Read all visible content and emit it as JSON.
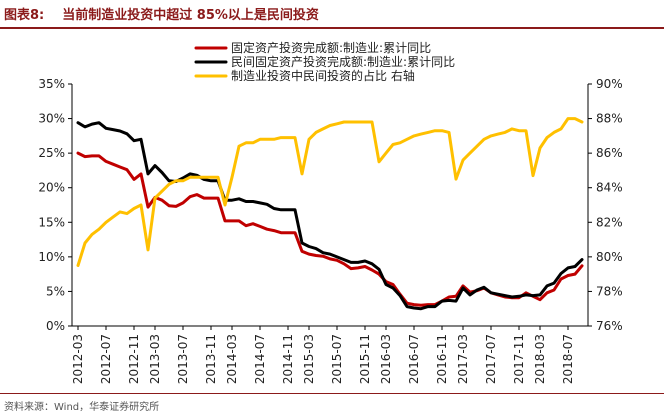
{
  "figure": {
    "label": "图表8:",
    "title": "当前制造业投资中超过 85%以上是民间投资",
    "source": "资料来源：Wind，华泰证券研究所"
  },
  "chart_data": {
    "type": "line",
    "x": [
      "2012-03",
      "2012-04",
      "2012-05",
      "2012-06",
      "2012-07",
      "2012-08",
      "2012-09",
      "2012-10",
      "2012-11",
      "2012-12",
      "2013-02",
      "2013-03",
      "2013-04",
      "2013-05",
      "2013-06",
      "2013-07",
      "2013-08",
      "2013-09",
      "2013-10",
      "2013-11",
      "2013-12",
      "2014-02",
      "2014-03",
      "2014-04",
      "2014-05",
      "2014-06",
      "2014-07",
      "2014-08",
      "2014-09",
      "2014-10",
      "2014-11",
      "2014-12",
      "2015-02",
      "2015-03",
      "2015-04",
      "2015-05",
      "2015-06",
      "2015-07",
      "2015-08",
      "2015-09",
      "2015-10",
      "2015-11",
      "2015-12",
      "2016-02",
      "2016-03",
      "2016-04",
      "2016-05",
      "2016-06",
      "2016-07",
      "2016-08",
      "2016-09",
      "2016-10",
      "2016-11",
      "2016-12",
      "2017-02",
      "2017-03",
      "2017-04",
      "2017-05",
      "2017-06",
      "2017-07",
      "2017-08",
      "2017-09",
      "2017-10",
      "2017-11",
      "2017-12",
      "2018-02",
      "2018-03",
      "2018-04",
      "2018-05",
      "2018-06",
      "2018-07",
      "2018-08",
      "2018-09"
    ],
    "x_tick_labels": [
      "2012-03",
      "2012-07",
      "2012-11",
      "2013-03",
      "2013-07",
      "2013-11",
      "2014-03",
      "2014-07",
      "2014-11",
      "2015-03",
      "2015-07",
      "2015-11",
      "2016-03",
      "2016-07",
      "2016-11",
      "2017-03",
      "2017-07",
      "2017-11",
      "2018-03",
      "2018-07"
    ],
    "y_left": {
      "min": 0,
      "max": 35,
      "step": 5,
      "unit": "%",
      "tick_labels": [
        "0%",
        "5%",
        "10%",
        "15%",
        "20%",
        "25%",
        "30%",
        "35%"
      ]
    },
    "y_right": {
      "min": 76,
      "max": 90,
      "step": 2,
      "unit": "%",
      "tick_labels": [
        "76%",
        "78%",
        "80%",
        "82%",
        "84%",
        "86%",
        "88%",
        "90%"
      ]
    },
    "legend_position": "top-center",
    "grid": false,
    "series": [
      {
        "name": "固定资产投资完成额:制造业:累计同比",
        "color": "#C00000",
        "axis": "left",
        "values": [
          25.0,
          24.5,
          24.6,
          24.6,
          23.8,
          23.4,
          23.0,
          22.6,
          21.2,
          22.0,
          17.2,
          18.6,
          18.2,
          17.4,
          17.3,
          17.8,
          18.7,
          19.0,
          18.5,
          18.5,
          18.5,
          15.2,
          15.2,
          15.2,
          14.5,
          14.8,
          14.4,
          14.0,
          13.8,
          13.5,
          13.5,
          13.5,
          10.8,
          10.4,
          10.2,
          10.1,
          9.7,
          9.5,
          9.0,
          8.3,
          8.4,
          8.6,
          8.1,
          7.5,
          6.4,
          6.0,
          4.6,
          3.3,
          3.1,
          3.0,
          3.1,
          3.1,
          3.6,
          4.2,
          4.3,
          5.8,
          4.9,
          5.1,
          5.5,
          4.8,
          4.5,
          4.2,
          4.1,
          4.1,
          4.8,
          4.3,
          3.8,
          4.8,
          5.2,
          6.8,
          7.3,
          7.5,
          8.7
        ]
      },
      {
        "name": "民间固定资产投资完成额:制造业:累计同比",
        "color": "#000000",
        "axis": "left",
        "values": [
          29.4,
          28.8,
          29.2,
          29.4,
          28.6,
          28.4,
          28.2,
          27.8,
          26.8,
          27.0,
          22.0,
          23.2,
          22.2,
          21.0,
          20.9,
          21.4,
          22.0,
          21.8,
          21.2,
          21.0,
          21.0,
          18.2,
          18.2,
          18.4,
          18.0,
          18.0,
          17.8,
          17.6,
          17.0,
          16.8,
          16.8,
          16.8,
          12.0,
          11.5,
          11.2,
          10.6,
          10.4,
          10.0,
          9.6,
          9.2,
          9.2,
          9.4,
          9.0,
          8.2,
          6.0,
          5.5,
          4.4,
          2.8,
          2.6,
          2.5,
          2.8,
          2.8,
          3.6,
          3.7,
          3.6,
          5.5,
          4.5,
          5.2,
          5.6,
          4.8,
          4.6,
          4.4,
          4.2,
          4.3,
          4.5,
          4.4,
          4.5,
          5.8,
          6.2,
          7.6,
          8.4,
          8.6,
          9.6
        ]
      },
      {
        "name": "制造业投资中民间投资的占比 右轴",
        "color": "#FFC000",
        "axis": "right",
        "values": [
          79.5,
          80.8,
          81.3,
          81.6,
          82.0,
          82.3,
          82.6,
          82.5,
          82.8,
          83.0,
          80.4,
          83.4,
          83.8,
          84.2,
          84.4,
          84.4,
          84.6,
          84.6,
          84.6,
          84.6,
          84.6,
          83.0,
          84.6,
          86.4,
          86.6,
          86.6,
          86.8,
          86.8,
          86.8,
          86.9,
          86.9,
          86.9,
          84.8,
          86.8,
          87.2,
          87.4,
          87.6,
          87.7,
          87.8,
          87.8,
          87.8,
          87.8,
          87.8,
          85.5,
          86.0,
          86.5,
          86.6,
          86.8,
          87.0,
          87.1,
          87.2,
          87.3,
          87.3,
          87.2,
          84.5,
          85.6,
          86.0,
          86.4,
          86.8,
          87.0,
          87.1,
          87.2,
          87.4,
          87.3,
          87.3,
          84.7,
          86.3,
          86.9,
          87.2,
          87.4,
          88.0,
          88.0,
          87.8
        ]
      }
    ]
  }
}
